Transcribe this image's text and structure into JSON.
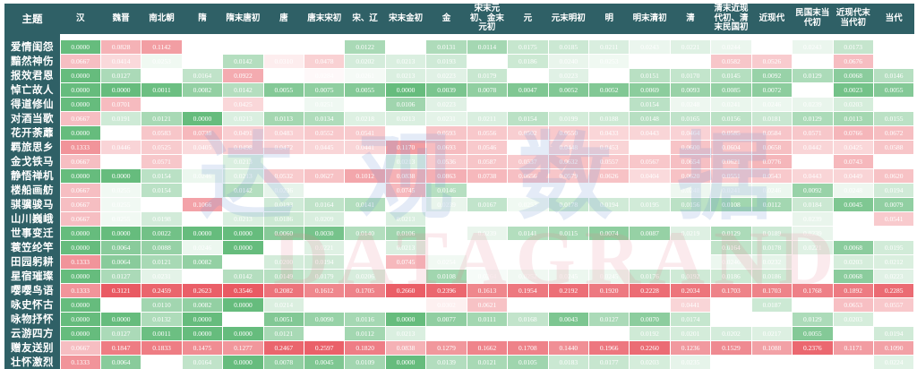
{
  "chart_data": {
    "type": "heatmap",
    "corner_label": "主题",
    "columns": [
      "汉",
      "魏晋",
      "南北朝",
      "隋",
      "隋末唐初",
      "唐",
      "唐末宋初",
      "宋、辽",
      "宋末金初",
      "金",
      "宋末元初、金末元初",
      "元",
      "元末明初",
      "明",
      "明末清初",
      "清",
      "清末近现代初、清末民国初",
      "近现代",
      "民国末当代初",
      "近现代末当代初",
      "当代"
    ],
    "rows": [
      {
        "label": "爱情闺怨",
        "values": [
          "0.0000",
          "0.0828",
          "0.1142",
          "",
          "",
          "",
          "",
          "0.0122",
          "",
          "0.0131",
          "0.0114",
          "0.0175",
          "0.0185",
          "0.0211",
          "0.0243",
          "0.0221",
          "0.0244",
          "",
          "0.0243",
          "0.0173",
          ""
        ]
      },
      {
        "label": "黯然神伤",
        "values": [
          "0.0667",
          "0.0414",
          "0.0253",
          "",
          "0.0142",
          "0.0310",
          "0.0478",
          "0.0202",
          "0.0213",
          "0.0193",
          "",
          "0.0186",
          "0.0240",
          "0.0253",
          "",
          "",
          "0.0582",
          "0.0526",
          "",
          "0.0676",
          ""
        ]
      },
      {
        "label": "报效君恩",
        "values": [
          "0.0000",
          "0.0127",
          "",
          "0.0164",
          "0.0922",
          "",
          "0.0284",
          "0.0261",
          "0.0213",
          "0.0223",
          "0.0179",
          "",
          "0.0223",
          "",
          "0.0151",
          "0.0170",
          "0.0145",
          "0.0092",
          "0.0129",
          "0.0068",
          "0.0146"
        ]
      },
      {
        "label": "悼亡故人",
        "values": [
          "0.0000",
          "0.0000",
          "0.0011",
          "0.0082",
          "0.0142",
          "0.0055",
          "0.0075",
          "0.0055",
          "0.0000",
          "0.0039",
          "0.0078",
          "0.0047",
          "0.0052",
          "0.0052",
          "0.0069",
          "0.0093",
          "0.0085",
          "0.0072",
          "",
          "0.0023",
          "0.0055"
        ]
      },
      {
        "label": "得道修仙",
        "values": [
          "0.0000",
          "0.0701",
          "",
          "",
          "0.0425",
          "",
          "0.0251",
          "",
          "0.0106",
          "0.0223",
          "",
          "",
          "",
          "",
          "0.0154",
          "0.0248",
          "0.0241",
          "0.0246",
          "0.0239",
          "0.0203",
          ""
        ]
      },
      {
        "label": "对酒当歌",
        "values": [
          "0.0667",
          "0.0191",
          "0.0121",
          "0.0000",
          "0.0213",
          "0.0113",
          "0.0134",
          "0.0218",
          "0.0213",
          "0.0231",
          "0.0211",
          "0.0154",
          "0.0199",
          "0.0188",
          "0.0148",
          "0.0165",
          "0.0156",
          "0.0181",
          "0.0129",
          "0.0113",
          "0.0155"
        ]
      },
      {
        "label": "花开荼蘼",
        "values": [
          "0.0000",
          "",
          "0.0583",
          "0.0738",
          "0.0491",
          "0.0483",
          "0.0552",
          "0.0541",
          "",
          "0.0593",
          "0.0556",
          "0.0502",
          "0.0550",
          "0.0433",
          "0.0443",
          "0.0464",
          "0.0585",
          "0.0584",
          "0.0571",
          "0.0766",
          "0.0672"
        ]
      },
      {
        "label": "羁旅思乡",
        "values": [
          "0.1333",
          "0.0446",
          "0.0525",
          "0.0405",
          "0.0498",
          "0.0472",
          "0.0445",
          "0.0441",
          "0.1170",
          "0.0693",
          "0.0546",
          "",
          "0.0448",
          "0.0453",
          "",
          "0.0600",
          "0.0604",
          "0.0658",
          "0.0442",
          "0.0425",
          "0.0588"
        ]
      },
      {
        "label": "金戈铁马",
        "values": [
          "0.0667",
          "",
          "0.0571",
          "",
          "0.0213",
          "",
          "",
          "",
          "0.0213",
          "0.0536",
          "0.0587",
          "0.0537",
          "0.0632",
          "0.0557",
          "0.0567",
          "0.0654",
          "0.0621",
          "0.0776",
          "",
          "0.0743",
          ""
        ]
      },
      {
        "label": "静悟禅机",
        "values": [
          "0.0000",
          "0.0000",
          "0.0154",
          "0.0246",
          "0.0213",
          "0.0532",
          "0.0627",
          "0.1012",
          "0.0838",
          "0.0863",
          "0.0738",
          "0.0656",
          "0.0579",
          "0.0626",
          "0.0404",
          "0.0620",
          "0.0551",
          "0.0543",
          "0.0443",
          "0.0449",
          "0.0620"
        ]
      },
      {
        "label": "楼船画舫",
        "values": [
          "0.0667",
          "0.0255",
          "0.0154",
          "",
          "0.0142",
          "0.0236",
          "",
          "",
          "0.0745",
          "0.0146",
          "",
          "",
          "",
          "",
          "",
          "0.0248",
          "0.0241",
          "0.0246",
          "0.0092",
          "0.0248",
          "0.0194"
        ]
      },
      {
        "label": "骐骥骏马",
        "values": [
          "0.0667",
          "0.0255",
          "",
          "0.1066",
          "",
          "0.0193",
          "0.0164",
          "0.0141",
          "",
          "0.0239",
          "0.0167",
          "0.0253",
          "0.0178",
          "0.0194",
          "0.0195",
          "0.0156",
          "0.0108",
          "0.0112",
          "0.0184",
          "0.0045",
          "0.0079"
        ]
      },
      {
        "label": "山川巍峨",
        "values": [
          "0.0667",
          "0.0255",
          "0.0198",
          "",
          "0.0213",
          "0.0186",
          "0.0209",
          "",
          "0.0213",
          "",
          "",
          "",
          "",
          "",
          "",
          "",
          "",
          "",
          "0.0239",
          "",
          "0.0541"
        ]
      },
      {
        "label": "世事变迁",
        "values": [
          "0.0000",
          "0.0000",
          "0.0022",
          "0.0000",
          "0.0000",
          "0.0060",
          "0.0030",
          "0.0140",
          "0.0106",
          "",
          "0.0239",
          "0.0141",
          "0.0115",
          "0.0074",
          "0.0087",
          "0.0219",
          "0.0129",
          "0.0189",
          "0.0239",
          "",
          ""
        ]
      },
      {
        "label": "蓑笠纶竿",
        "values": [
          "0.0000",
          "0.0064",
          "0.0088",
          "0.0246",
          "0.0000",
          "",
          "0.0221",
          "",
          "0.0213",
          "",
          "",
          "",
          "",
          "",
          "",
          "",
          "0.0164",
          "0.0178",
          "0.0221",
          "0.0068",
          "0.0195"
        ]
      },
      {
        "label": "田园躬耕",
        "values": [
          "0.1333",
          "0.0064",
          "0.0121",
          "0.0082",
          "",
          "0.0200",
          "0.0194",
          "",
          "0.0745",
          "0.0254",
          "",
          "",
          "",
          "",
          "",
          "",
          "0.0246",
          "0.0232",
          "",
          "0.0203",
          "0.0212"
        ]
      },
      {
        "label": "星宿璀璨",
        "values": [
          "0.0000",
          "0.0127",
          "0.0231",
          "",
          "0.0142",
          "0.0149",
          "0.0179",
          "0.0206",
          "",
          "0.0108",
          "0.0264",
          "0.0252",
          "0.0245",
          "0.0245",
          "0.0176",
          "0.0192",
          "0.0186",
          "0.0186",
          "",
          "0.0068",
          "0.0223"
        ]
      },
      {
        "label": "嘤嘤鸟语",
        "values": [
          "0.1333",
          "0.3121",
          "0.2459",
          "0.2623",
          "0.3546",
          "0.2082",
          "0.1612",
          "0.1705",
          "0.2660",
          "0.2396",
          "0.1613",
          "0.1954",
          "0.2192",
          "0.1920",
          "0.2228",
          "0.2034",
          "0.1703",
          "0.1703",
          "0.1768",
          "0.1892",
          "0.2285"
        ]
      },
      {
        "label": "咏史怀古",
        "values": [
          "0.0000",
          "",
          "0.0110",
          "0.0082",
          "0.0000",
          "0.0214",
          "",
          "",
          "",
          "0.0302",
          "0.0621",
          "",
          "",
          "",
          "",
          "0.0441",
          "",
          "0.0187",
          "",
          "0.0653",
          "0.0557"
        ]
      },
      {
        "label": "咏物抒怀",
        "values": [
          "0.0000",
          "0.0000",
          "0.0132",
          "0.0000",
          "",
          "0.0051",
          "0.0090",
          "0.0116",
          "0.0000",
          "0.0077",
          "0.0111",
          "0.0168",
          "0.0043",
          "0.0127",
          "0.0070",
          "0.0174",
          "",
          "",
          "0.0129",
          "0.0203",
          ""
        ]
      },
      {
        "label": "云游四方",
        "values": [
          "0.0000",
          "0.0127",
          "0.0011",
          "0.0000",
          "0.0000",
          "0.0121",
          "",
          "0.0112",
          "0.0213",
          "",
          "",
          "",
          "",
          "",
          "0.0192",
          "0.0201",
          "0.0202",
          "0.0217",
          "0.0055",
          "",
          "0.0194"
        ]
      },
      {
        "label": "赠友送别",
        "values": [
          "0.0667",
          "0.1847",
          "0.1833",
          "0.1475",
          "0.1277",
          "0.2467",
          "0.2597",
          "0.1820",
          "0.0838",
          "0.1279",
          "0.1662",
          "0.1708",
          "0.1440",
          "0.1966",
          "0.2260",
          "0.1236",
          "0.1529",
          "0.1088",
          "0.2376",
          "0.1171",
          "0.1090"
        ]
      },
      {
        "label": "壮怀激烈",
        "values": [
          "0.1333",
          "0.0064",
          "",
          "0.0164",
          "0.0000",
          "0.0078",
          "0.0045",
          "0.0109",
          "0.0000",
          "0.0139",
          "0.0121",
          "0.0105",
          "0.0183",
          "0.0177",
          "0.0203",
          "0.0235",
          "",
          "",
          "",
          "",
          "0.0224"
        ]
      }
    ],
    "value_range": [
      0.0,
      0.3546
    ],
    "colors": {
      "low": "#66bc7d",
      "mid": "#ffffff",
      "high": "#e95a63",
      "header_bg": "#2f6066",
      "header_text": "#ffffff",
      "cell_text": "#ffffff"
    },
    "legend_position": "none",
    "watermark": {
      "line1": "达观数据",
      "line2": "DATAGRAND"
    }
  }
}
